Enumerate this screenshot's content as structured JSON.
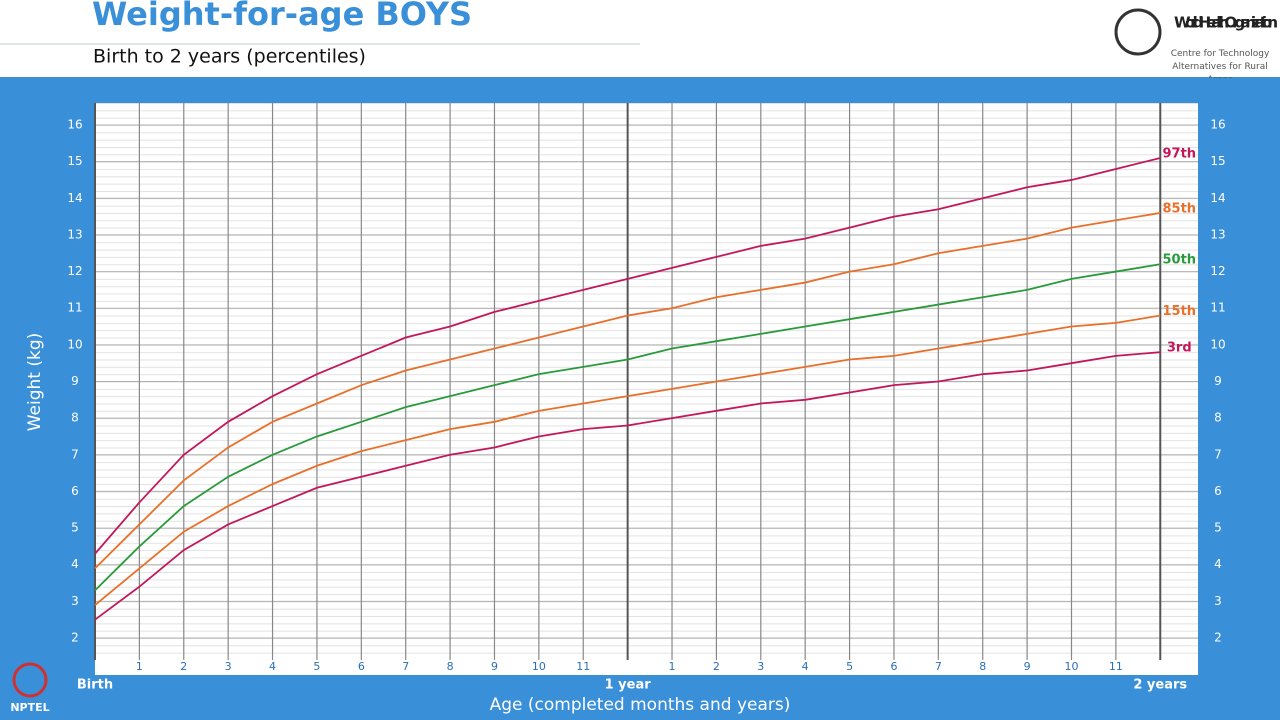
{
  "header": {
    "title": "Weight-for-age BOYS",
    "subtitle": "Birth to 2 years (percentiles)"
  },
  "logo": {
    "org": "World Health Organization",
    "centre": "Centre for Technology Alternatives for Rural Areas"
  },
  "watermark": "NPTEL",
  "chart_data": {
    "type": "line",
    "x_label": "Age (completed months and years)",
    "y_label": "Weight (kg)",
    "x": [
      0,
      1,
      2,
      3,
      4,
      5,
      6,
      7,
      8,
      9,
      10,
      11,
      12,
      13,
      14,
      15,
      16,
      17,
      18,
      19,
      20,
      21,
      22,
      23,
      24
    ],
    "series": [
      {
        "name": "97th",
        "color": "#c2185b",
        "values": [
          4.3,
          5.7,
          7.0,
          7.9,
          8.6,
          9.2,
          9.7,
          10.2,
          10.5,
          10.9,
          11.2,
          11.5,
          11.8,
          12.1,
          12.4,
          12.7,
          12.9,
          13.2,
          13.5,
          13.7,
          14.0,
          14.3,
          14.5,
          14.8,
          15.1
        ]
      },
      {
        "name": "85th",
        "color": "#e8702a",
        "values": [
          3.9,
          5.1,
          6.3,
          7.2,
          7.9,
          8.4,
          8.9,
          9.3,
          9.6,
          9.9,
          10.2,
          10.5,
          10.8,
          11.0,
          11.3,
          11.5,
          11.7,
          12.0,
          12.2,
          12.5,
          12.7,
          12.9,
          13.2,
          13.4,
          13.6
        ]
      },
      {
        "name": "50th",
        "color": "#2a9a3c",
        "values": [
          3.3,
          4.5,
          5.6,
          6.4,
          7.0,
          7.5,
          7.9,
          8.3,
          8.6,
          8.9,
          9.2,
          9.4,
          9.6,
          9.9,
          10.1,
          10.3,
          10.5,
          10.7,
          10.9,
          11.1,
          11.3,
          11.5,
          11.8,
          12.0,
          12.2
        ]
      },
      {
        "name": "15th",
        "color": "#e8702a",
        "values": [
          2.9,
          3.9,
          4.9,
          5.6,
          6.2,
          6.7,
          7.1,
          7.4,
          7.7,
          7.9,
          8.2,
          8.4,
          8.6,
          8.8,
          9.0,
          9.2,
          9.4,
          9.6,
          9.7,
          9.9,
          10.1,
          10.3,
          10.5,
          10.6,
          10.8
        ]
      },
      {
        "name": "3rd",
        "color": "#c2185b",
        "values": [
          2.5,
          3.4,
          4.4,
          5.1,
          5.6,
          6.1,
          6.4,
          6.7,
          7.0,
          7.2,
          7.5,
          7.7,
          7.8,
          8.0,
          8.2,
          8.4,
          8.5,
          8.7,
          8.9,
          9.0,
          9.2,
          9.3,
          9.5,
          9.7,
          9.8
        ]
      }
    ],
    "xlim": [
      0,
      24.85
    ],
    "xticks": [
      {
        "value": 0,
        "label": "Birth"
      },
      1,
      2,
      3,
      4,
      5,
      6,
      7,
      8,
      9,
      10,
      11,
      {
        "value": 12,
        "label": "1 year"
      },
      {
        "value": 13,
        "label": "1"
      },
      {
        "value": 14,
        "label": "2"
      },
      {
        "value": 15,
        "label": "3"
      },
      {
        "value": 16,
        "label": "4"
      },
      {
        "value": 17,
        "label": "5"
      },
      {
        "value": 18,
        "label": "6"
      },
      {
        "value": 19,
        "label": "7"
      },
      {
        "value": 20,
        "label": "8"
      },
      {
        "value": 21,
        "label": "9"
      },
      {
        "value": 22,
        "label": "10"
      },
      {
        "value": 23,
        "label": "11"
      },
      {
        "value": 24,
        "label": "2 years"
      }
    ],
    "ylim": [
      1.4,
      16.6
    ],
    "yticks": [
      2,
      3,
      4,
      5,
      6,
      7,
      8,
      9,
      10,
      11,
      12,
      13,
      14,
      15,
      16
    ],
    "grid": true
  }
}
